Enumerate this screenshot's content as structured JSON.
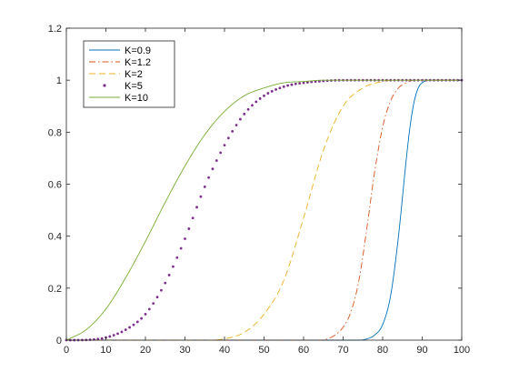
{
  "chart_data": {
    "type": "line",
    "title": "",
    "xlabel": "",
    "ylabel": "",
    "xlim": [
      0,
      100
    ],
    "ylim": [
      0,
      1.2
    ],
    "x_ticks": [
      "0",
      "10",
      "20",
      "30",
      "40",
      "50",
      "60",
      "70",
      "80",
      "90",
      "100"
    ],
    "y_ticks": [
      "0",
      "0.2",
      "0.4",
      "0.6",
      "0.8",
      "1",
      "1.2"
    ],
    "grid": false,
    "legend_position": "top-left",
    "x": [
      0,
      5,
      10,
      15,
      20,
      25,
      30,
      35,
      40,
      45,
      50,
      55,
      60,
      65,
      70,
      75,
      80,
      85,
      90,
      95,
      100
    ],
    "series": [
      {
        "name": "K=0.9",
        "color": "#0072BD",
        "style": "solid",
        "x": [
          0,
          70,
          74,
          76,
          78,
          80,
          82,
          84,
          86,
          87,
          88,
          89,
          90,
          92,
          95,
          100
        ],
        "values": [
          0,
          0,
          0,
          0.005,
          0.02,
          0.06,
          0.17,
          0.4,
          0.7,
          0.83,
          0.92,
          0.97,
          0.99,
          1.0,
          1.0,
          1.0
        ]
      },
      {
        "name": "K=1.2",
        "color": "#D95319",
        "style": "dashdot",
        "x": [
          0,
          60,
          64,
          66,
          68,
          70,
          72,
          74,
          76,
          78,
          80,
          82,
          84,
          86,
          88,
          90,
          100
        ],
        "values": [
          0,
          0,
          0,
          0.005,
          0.02,
          0.05,
          0.11,
          0.23,
          0.43,
          0.65,
          0.82,
          0.92,
          0.97,
          0.99,
          1.0,
          1.0,
          1.0
        ]
      },
      {
        "name": "K=2",
        "color": "#EDB120",
        "style": "dashed",
        "values": [
          0,
          0,
          0,
          0,
          0,
          0,
          0,
          0,
          0.005,
          0.03,
          0.1,
          0.23,
          0.47,
          0.73,
          0.9,
          0.97,
          0.995,
          1.0,
          1.0,
          1.0,
          1.0
        ]
      },
      {
        "name": "K=5",
        "color": "#7E2F8E",
        "style": "dotted",
        "values": [
          0,
          0.001,
          0.01,
          0.04,
          0.1,
          0.22,
          0.39,
          0.59,
          0.75,
          0.87,
          0.94,
          0.975,
          0.99,
          0.997,
          1.0,
          1.0,
          1.0,
          1.0,
          1.0,
          1.0,
          1.0
        ]
      },
      {
        "name": "K=10",
        "color": "#77AC30",
        "style": "solid",
        "values": [
          0,
          0.04,
          0.12,
          0.24,
          0.38,
          0.53,
          0.67,
          0.79,
          0.88,
          0.94,
          0.97,
          0.99,
          0.995,
          1.0,
          1.0,
          1.0,
          1.0,
          1.0,
          1.0,
          1.0,
          1.0
        ]
      }
    ]
  }
}
